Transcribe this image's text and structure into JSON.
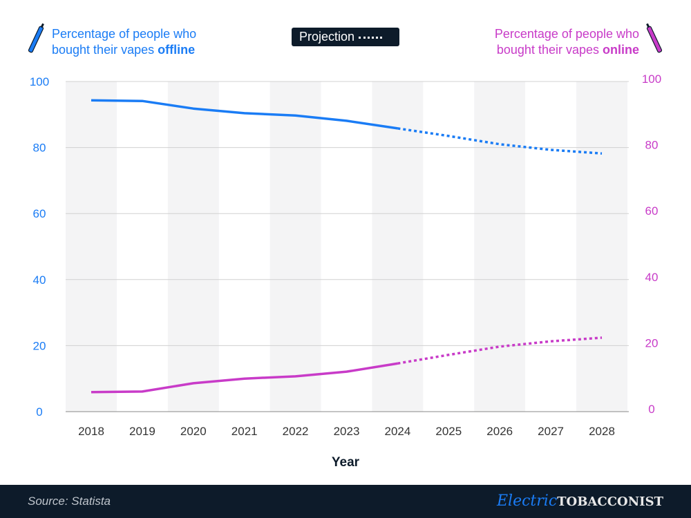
{
  "legend": {
    "offline": {
      "line1": "Percentage of people who",
      "line2": "bought their vapes ",
      "bold": "offline",
      "color": "#1a7cf5"
    },
    "online": {
      "line1": "Percentage of people who",
      "line2": "bought their vapes ",
      "bold": "online",
      "color": "#c83bc8"
    },
    "projection": "Projection"
  },
  "chart_data": {
    "type": "line",
    "xlabel": "Year",
    "categories": [
      "2018",
      "2019",
      "2020",
      "2021",
      "2022",
      "2023",
      "2024",
      "2025",
      "2026",
      "2027",
      "2028"
    ],
    "projection_start": "2024",
    "ylim": [
      0,
      100
    ],
    "yticks": [
      0,
      20,
      40,
      60,
      80,
      100
    ],
    "grid": true,
    "series": [
      {
        "name": "Percentage of people who bought their vapes offline",
        "color": "#1a7cf5",
        "values": [
          94.3,
          94.1,
          91.8,
          90.4,
          89.7,
          88.1,
          85.8,
          83.5,
          81.0,
          79.3,
          78.2
        ]
      },
      {
        "name": "Percentage of people who bought their vapes online",
        "color": "#c83bc8",
        "values": [
          5.9,
          6.1,
          8.6,
          10.0,
          10.7,
          12.1,
          14.6,
          17.2,
          19.7,
          21.3,
          22.4
        ]
      }
    ]
  },
  "footer": {
    "source": "Source: Statista",
    "logo_script": "Electric",
    "logo_bold": "TOBACCONIST"
  }
}
